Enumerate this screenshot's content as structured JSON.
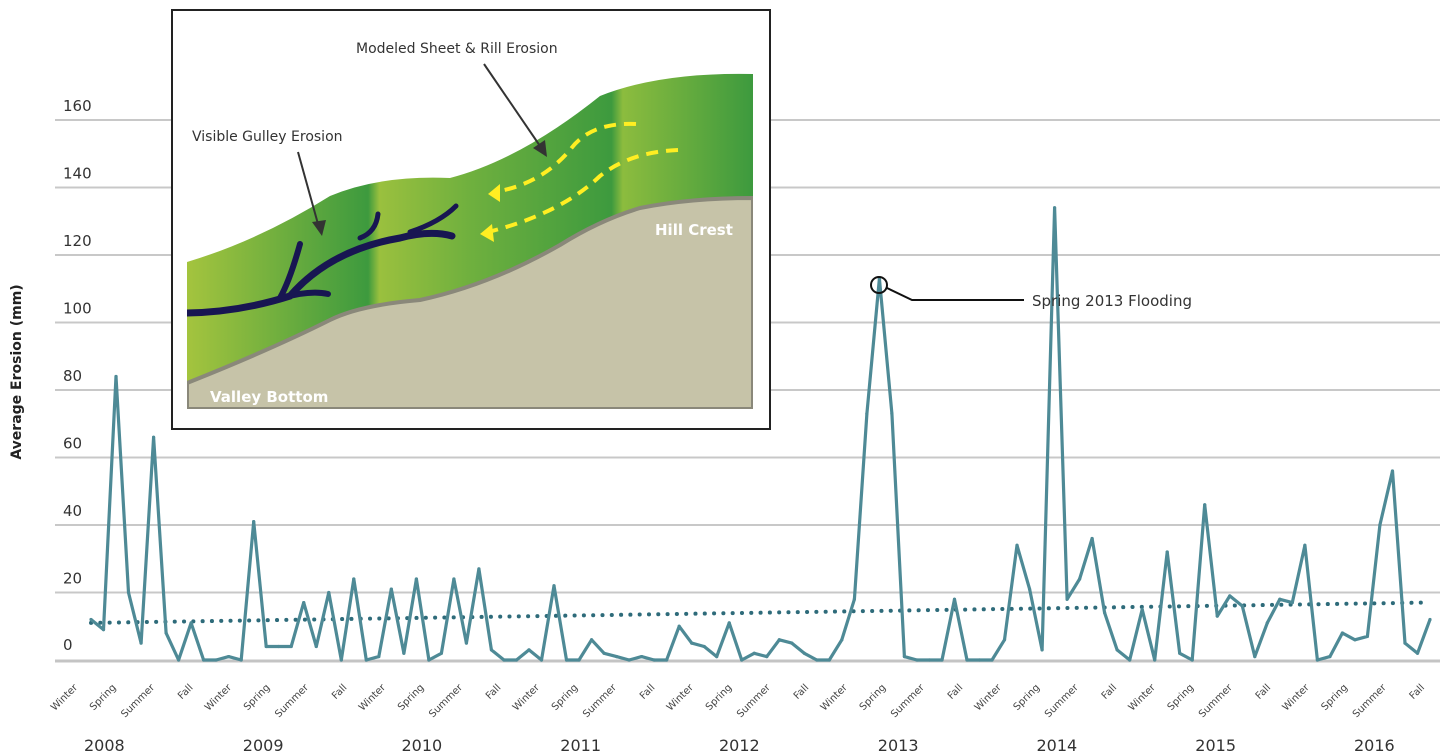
{
  "chart_data": {
    "type": "line",
    "ylabel": "Average Erosion (mm)",
    "xlabel": "",
    "ylim": [
      0,
      160
    ],
    "y_ticks": [
      0,
      20,
      40,
      60,
      80,
      100,
      120,
      140,
      160
    ],
    "grid": "horizontal",
    "years": [
      "2008",
      "2009",
      "2010",
      "2011",
      "2012",
      "2013",
      "2014",
      "2015",
      "2016"
    ],
    "seasons": [
      "Winter",
      "Spring",
      "Summer",
      "Fall"
    ],
    "series": [
      {
        "color": "#4e8a96",
        "values": [
          12,
          9,
          84,
          20,
          5,
          66,
          8,
          0,
          11,
          0,
          0,
          1,
          0,
          41,
          4,
          4,
          4,
          17,
          4,
          20,
          0,
          24,
          0,
          1,
          21,
          2,
          24,
          0,
          2,
          24,
          5,
          27,
          3,
          0,
          0,
          3,
          0,
          22,
          0,
          0,
          6,
          2,
          1,
          0,
          1,
          0,
          0,
          10,
          5,
          4,
          1,
          11,
          0,
          2,
          1,
          6,
          5,
          2,
          0,
          0,
          6,
          18,
          73,
          113,
          73,
          1,
          0,
          0,
          0,
          18,
          0,
          0,
          0,
          6,
          34,
          21,
          3,
          134,
          18,
          24,
          36,
          14,
          3,
          0,
          15,
          0,
          32,
          2,
          0,
          46,
          13,
          19,
          16,
          1,
          11,
          18,
          17,
          34,
          0,
          1,
          8,
          6,
          7,
          40,
          56,
          5,
          2,
          12
        ]
      },
      {
        "dashed": true,
        "color": "#2e6b7a",
        "values": [
          11,
          17
        ]
      }
    ],
    "annotations": [
      "Spring 2013 Flooding"
    ]
  },
  "inset": {
    "labels": {
      "modeled": "Modeled Sheet & Rill Erosion",
      "gulley": "Visible Gulley Erosion",
      "crest": "Hill Crest",
      "valley": "Valley Bottom"
    },
    "colors": {
      "soil": "#c6c3a8",
      "grass_light": "#a4c43e",
      "grass_dark": "#3d9a3e",
      "gully": "#181652",
      "flow": "#ffee22"
    }
  }
}
